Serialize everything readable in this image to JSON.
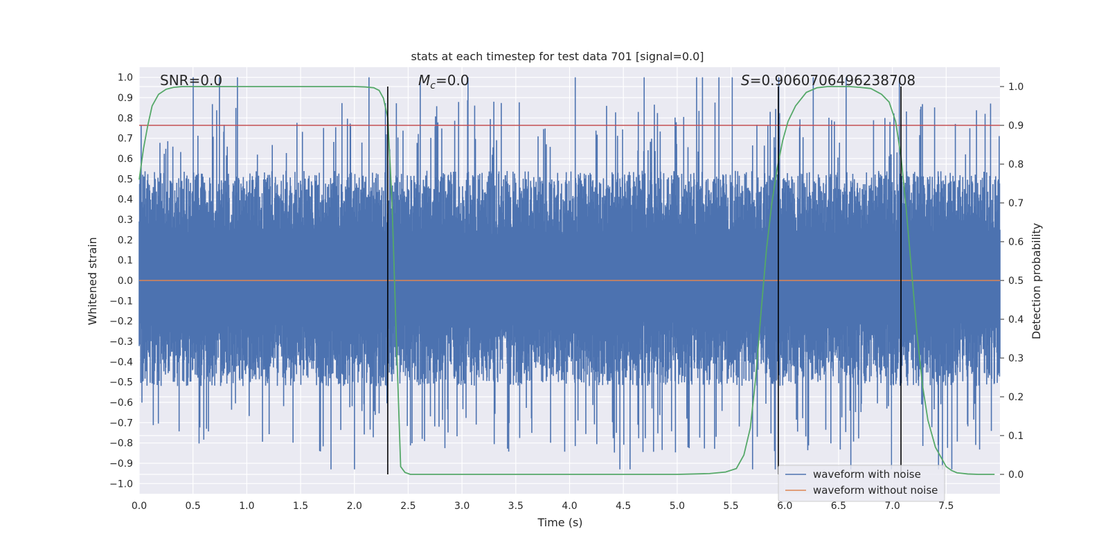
{
  "chart_data": {
    "type": "line",
    "title": "stats at each timestep for test data 701 [signal=0.0]",
    "xlabel": "Time (s)",
    "ylabel": "Whitened strain",
    "ylabel_right": "Detection probability",
    "xlim": [
      0.0,
      8.0
    ],
    "ylim": [
      -1.05,
      1.05
    ],
    "ylim_right": [
      -0.05,
      1.05
    ],
    "x_ticks": [
      0.0,
      0.5,
      1.0,
      1.5,
      2.0,
      2.5,
      3.0,
      3.5,
      4.0,
      4.5,
      5.0,
      5.5,
      6.0,
      6.5,
      7.0,
      7.5
    ],
    "x_tick_labels": [
      "0.0",
      "0.5",
      "1.0",
      "1.5",
      "2.0",
      "2.5",
      "3.0",
      "3.5",
      "4.0",
      "4.5",
      "5.0",
      "5.5",
      "6.0",
      "6.5",
      "7.0",
      "7.5"
    ],
    "y_ticks": [
      1.0,
      0.9,
      0.8,
      0.7,
      0.6,
      0.5,
      0.4,
      0.3,
      0.2,
      0.1,
      0.0,
      -0.1,
      -0.2,
      -0.3,
      -0.4,
      -0.5,
      -0.6,
      -0.7,
      -0.8,
      -0.9,
      -1.0
    ],
    "y_tick_labels": [
      "1.0",
      "0.9",
      "0.8",
      "0.7",
      "0.6",
      "0.5",
      "0.4",
      "0.3",
      "0.2",
      "0.1",
      "0.0",
      "−0.1",
      "−0.2",
      "−0.3",
      "−0.4",
      "−0.5",
      "−0.6",
      "−0.7",
      "−0.8",
      "−0.9",
      "−1.0"
    ],
    "y_right_ticks": [
      1.0,
      0.9,
      0.8,
      0.7,
      0.6,
      0.5,
      0.4,
      0.3,
      0.2,
      0.1,
      0.0
    ],
    "y_right_tick_labels": [
      "1.0",
      "0.9",
      "0.8",
      "0.7",
      "0.6",
      "0.5",
      "0.4",
      "0.3",
      "0.2",
      "0.1",
      "0.0"
    ],
    "annotations": {
      "snr": "SNR=0.0",
      "mc_symbol": "M",
      "mc_sub": "c",
      "mc_value": "=0.0",
      "s_symbol": "S",
      "s_value": "=0.9060706496238708"
    },
    "noise_envelope": {
      "duration": 8.0,
      "upper_peak_max": 1.0,
      "lower_peak_min": -0.93,
      "description_note": "dense random whitened noise; rendered procedurally"
    },
    "series": [
      {
        "name": "waveform with noise",
        "color": "#4c72b0",
        "axis": "left"
      },
      {
        "name": "waveform without noise",
        "color": "#dd8452",
        "axis": "left",
        "x": [
          0.0,
          8.0
        ],
        "y": [
          0.0,
          0.0
        ]
      },
      {
        "name": "detection probability",
        "color": "#55a868",
        "axis": "right",
        "x": [
          0.0,
          0.04,
          0.08,
          0.12,
          0.18,
          0.25,
          0.32,
          0.4,
          0.5,
          0.8,
          1.2,
          1.6,
          2.0,
          2.1,
          2.18,
          2.23,
          2.27,
          2.31,
          2.35,
          2.39,
          2.43,
          2.47,
          2.52,
          2.6,
          3.0,
          4.0,
          5.0,
          5.3,
          5.45,
          5.55,
          5.62,
          5.68,
          5.73,
          5.78,
          5.83,
          5.88,
          5.93,
          5.98,
          6.03,
          6.1,
          6.2,
          6.3,
          6.4,
          6.5,
          6.6,
          6.7,
          6.8,
          6.9,
          6.97,
          7.03,
          7.08,
          7.13,
          7.18,
          7.23,
          7.28,
          7.33,
          7.4,
          7.5,
          7.55,
          7.6,
          7.7,
          7.8,
          7.95
        ],
        "y": [
          0.76,
          0.84,
          0.9,
          0.95,
          0.98,
          0.993,
          0.998,
          1.0,
          1.0,
          1.0,
          1.0,
          1.0,
          1.0,
          0.999,
          0.997,
          0.99,
          0.97,
          0.92,
          0.7,
          0.35,
          0.02,
          0.005,
          0.0,
          0.0,
          0.0,
          0.0,
          0.0,
          0.002,
          0.006,
          0.015,
          0.05,
          0.12,
          0.25,
          0.42,
          0.58,
          0.7,
          0.79,
          0.86,
          0.91,
          0.95,
          0.985,
          0.997,
          1.0,
          1.0,
          1.0,
          0.998,
          0.995,
          0.98,
          0.96,
          0.91,
          0.82,
          0.68,
          0.52,
          0.36,
          0.23,
          0.14,
          0.07,
          0.02,
          0.01,
          0.004,
          0.001,
          0.0,
          0.0
        ]
      }
    ],
    "hlines": [
      {
        "name": "threshold",
        "axis": "right",
        "y": 0.9,
        "color": "#c44e52"
      }
    ],
    "vlines": [
      {
        "x": 2.31,
        "ymin": 0.0,
        "ymax": 1.0,
        "color": "#000000"
      },
      {
        "x": 5.94,
        "ymin": 0.0,
        "ymax": 1.0,
        "color": "#000000"
      },
      {
        "x": 7.08,
        "ymin": 0.0,
        "ymax": 1.0,
        "color": "#000000"
      }
    ],
    "legend": {
      "position": "lower-right",
      "entries": [
        {
          "label": "waveform with noise",
          "color": "#4c72b0"
        },
        {
          "label": "waveform without noise",
          "color": "#dd8452"
        }
      ]
    },
    "grid": true,
    "background": "#eaeaf2",
    "grid_color": "#ffffff"
  }
}
